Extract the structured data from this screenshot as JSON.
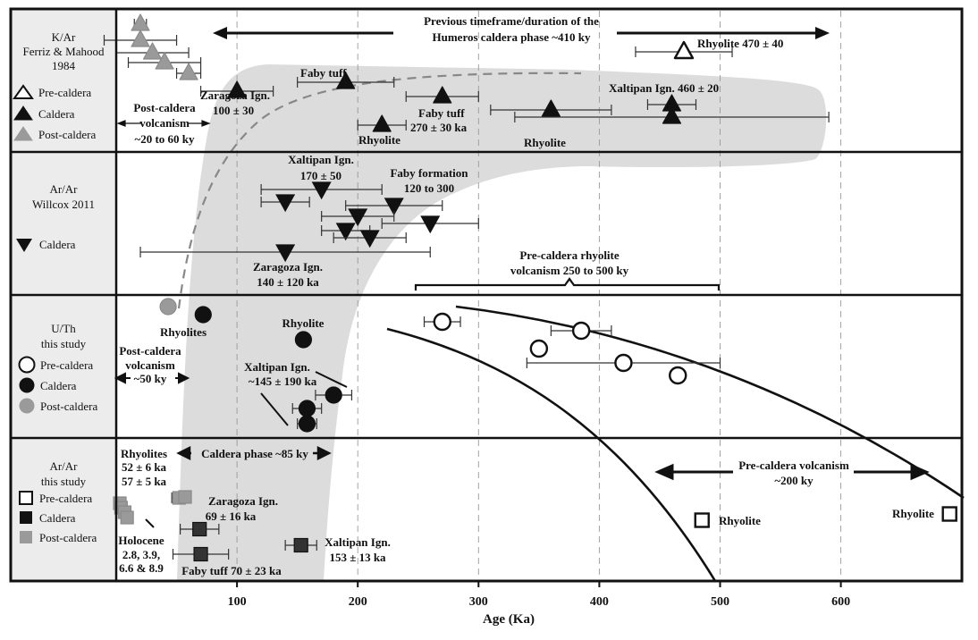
{
  "chart_data": {
    "type": "scatter",
    "xlabel": "Age (Ka)",
    "xlim": [
      0,
      700
    ],
    "xticks": [
      "100",
      "200",
      "300",
      "400",
      "500",
      "600"
    ],
    "xtick_values": [
      100,
      200,
      300,
      400,
      500,
      600
    ],
    "grid": "vertical dashed",
    "colors": {
      "frame": "#111111",
      "band": "#dcdcdc",
      "caldera": "#111111",
      "post_caldera": "#9a9a9a",
      "pre_caldera": "#ffffff"
    },
    "panels": [
      {
        "title": [
          "K/Ar",
          "Ferriz & Mahood",
          "1984"
        ],
        "legend": [
          {
            "label": "Pre-caldera",
            "marker": "triangle-up",
            "fill": "#ffffff"
          },
          {
            "label": "Caldera",
            "marker": "triangle-up",
            "fill": "#111111"
          },
          {
            "label": "Post-caldera",
            "marker": "triangle-up",
            "fill": "#9a9a9a"
          }
        ],
        "series": [
          {
            "name": "Pre-caldera",
            "marker": "triangle-up",
            "fill": "#ffffff",
            "points": [
              {
                "x": 470,
                "xerr": 40
              }
            ]
          },
          {
            "name": "Caldera",
            "marker": "triangle-up",
            "fill": "#111111",
            "points": [
              {
                "x": 100,
                "xerr": 30
              },
              {
                "x": 190,
                "xerr": 40
              },
              {
                "x": 270,
                "xerr": 30
              },
              {
                "x": 220,
                "xerr": 20
              },
              {
                "x": 360,
                "xerr": 50
              },
              {
                "x": 460,
                "xerr": 20
              },
              {
                "x": 460,
                "xerr": 130
              }
            ]
          },
          {
            "name": "Post-caldera",
            "marker": "triangle-up",
            "fill": "#9a9a9a",
            "points": [
              {
                "x": 20,
                "xerr": 5
              },
              {
                "x": 20,
                "xerr": 30
              },
              {
                "x": 30,
                "xerr": 30
              },
              {
                "x": 40,
                "xerr": 30
              },
              {
                "x": 60,
                "xerr": 10
              }
            ]
          }
        ],
        "annotations": [
          "Previous timeframe/duration of the",
          "Humeros caldera phase ~410 ky",
          "Rhyolite 470 ± 40",
          "Faby tuff",
          "Zaragoza Ign.",
          "100 ± 30",
          "Faby tuff",
          "270 ± 30 ka",
          "Rhyolite",
          "Xaltipan Ign. 460 ± 20",
          "Rhyolite",
          "Post-caldera",
          "volcanism",
          "~20 to 60 ky"
        ]
      },
      {
        "title": [
          "Ar/Ar",
          "Willcox 2011"
        ],
        "legend": [
          {
            "label": "Caldera",
            "marker": "triangle-down",
            "fill": "#111111"
          }
        ],
        "series": [
          {
            "name": "Caldera",
            "marker": "triangle-down",
            "fill": "#111111",
            "points": [
              {
                "x": 170,
                "xerr": 50
              },
              {
                "x": 230,
                "xerr": 40
              },
              {
                "x": 140,
                "xerr": 20
              },
              {
                "x": 200,
                "xerr": 30
              },
              {
                "x": 260,
                "xerr": 40
              },
              {
                "x": 190,
                "xerr": 20
              },
              {
                "x": 210,
                "xerr": 30
              },
              {
                "x": 140,
                "xerr": 120
              }
            ]
          }
        ],
        "annotations": [
          "Xaltipan Ign.",
          "170 ± 50",
          "Faby formation",
          "120 to 300",
          "Zaragoza Ign.",
          "140 ± 120 ka",
          "Pre-caldera rhyolite",
          "volcanism 250 to 500 ky"
        ]
      },
      {
        "title": [
          "U/Th",
          "this study"
        ],
        "legend": [
          {
            "label": "Pre-caldera",
            "marker": "circle",
            "fill": "#ffffff"
          },
          {
            "label": "Caldera",
            "marker": "circle",
            "fill": "#111111"
          },
          {
            "label": "Post-caldera",
            "marker": "circle",
            "fill": "#9a9a9a"
          }
        ],
        "series": [
          {
            "name": "Pre-caldera",
            "marker": "circle",
            "fill": "#ffffff",
            "points": [
              {
                "x": 270,
                "xerr": 15
              },
              {
                "x": 385,
                "xerr": 25
              },
              {
                "x": 350,
                "xerr": 0
              },
              {
                "x": 420,
                "xerr": 80
              },
              {
                "x": 465,
                "xerr": 0
              }
            ]
          },
          {
            "name": "Caldera",
            "marker": "circle",
            "fill": "#111111",
            "points": [
              {
                "x": 72,
                "xerr": 0
              },
              {
                "x": 155,
                "xerr": 0
              },
              {
                "x": 180,
                "xerr": 15
              },
              {
                "x": 158,
                "xerr": 12
              },
              {
                "x": 158,
                "xerr": 8
              }
            ]
          },
          {
            "name": "Post-caldera",
            "marker": "circle",
            "fill": "#9a9a9a",
            "points": [
              {
                "x": 43,
                "xerr": 0
              }
            ]
          }
        ],
        "annotations": [
          "Rhyolites",
          "Rhyolite",
          "Post-caldera",
          "volcanism",
          "~50 ky",
          "Xaltipan Ign.",
          "~145 ± 190 ka"
        ]
      },
      {
        "title": [
          "Ar/Ar",
          "this study"
        ],
        "legend": [
          {
            "label": "Pre-caldera",
            "marker": "square",
            "fill": "#ffffff"
          },
          {
            "label": "Caldera",
            "marker": "square",
            "fill": "#111111"
          },
          {
            "label": "Post-caldera",
            "marker": "square",
            "fill": "#9a9a9a"
          }
        ],
        "series": [
          {
            "name": "Pre-caldera",
            "marker": "square",
            "fill": "#ffffff",
            "points": [
              {
                "x": 485,
                "xerr": 0
              },
              {
                "x": 690,
                "xerr": 0
              }
            ]
          },
          {
            "name": "Caldera",
            "marker": "square",
            "fill": "#111111",
            "points": [
              {
                "x": 69,
                "xerr": 16
              },
              {
                "x": 70,
                "xerr": 23
              },
              {
                "x": 153,
                "xerr": 13
              }
            ]
          },
          {
            "name": "Post-caldera",
            "marker": "square",
            "fill": "#9a9a9a",
            "points": [
              {
                "x": 52,
                "xerr": 6
              },
              {
                "x": 57,
                "xerr": 5
              },
              {
                "x": 3,
                "xerr": 0
              },
              {
                "x": 4,
                "xerr": 0
              },
              {
                "x": 7,
                "xerr": 0
              },
              {
                "x": 9,
                "xerr": 0
              }
            ]
          }
        ],
        "annotations": [
          "Rhyolites",
          "52 ± 6 ka",
          "57 ± 5 ka",
          "Zaragoza Ign.",
          "69 ± 16 ka",
          "Holocene",
          "2.8, 3.9,",
          "6.6 & 8.9",
          "Faby tuff 70 ± 23 ka",
          "Xaltipan Ign.",
          "153 ± 13 ka",
          "Caldera phase ~85 ky",
          "Pre-caldera volcanism",
          "~200 ky",
          "Rhyolite",
          "Rhyolite"
        ]
      }
    ]
  }
}
